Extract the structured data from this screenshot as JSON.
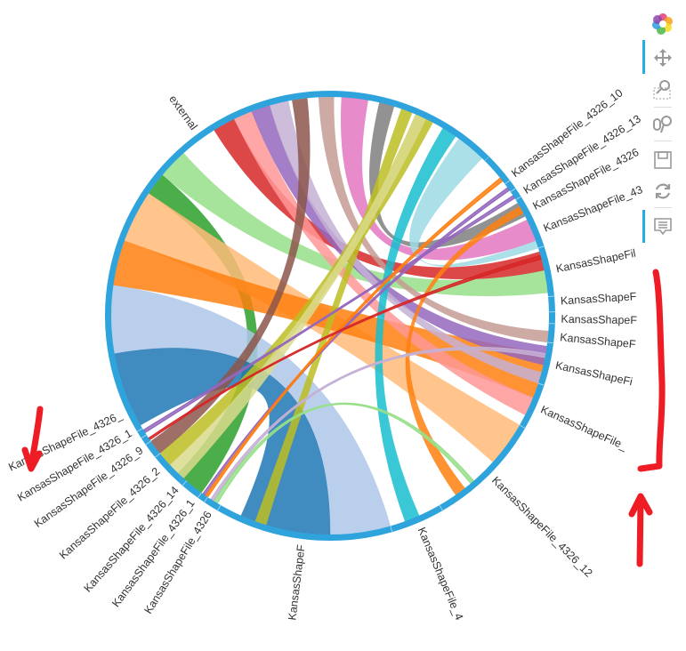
{
  "chart_data": {
    "type": "chord",
    "ring_color": "#2ea3dc",
    "nodes": [
      {
        "label": "external"
      },
      {
        "label": "KansasShapeFile_4326_"
      },
      {
        "label": "KansasShapeFile_4326_1"
      },
      {
        "label": "KansasShapeFile_4326_9"
      },
      {
        "label": "KansasShapeFile_4326_2"
      },
      {
        "label": "KansasShapeFile_4326_14"
      },
      {
        "label": "KansasShapeFile_4326_1"
      },
      {
        "label": "KansasShapeFile_4326"
      },
      {
        "label": "KansasShapeF"
      },
      {
        "label": "KansasShapeFile_4"
      },
      {
        "label": "KansasShapeFile_4326_12"
      },
      {
        "label": "KansasShapeFile_"
      },
      {
        "label": "KansasShapeFi"
      },
      {
        "label": "KansasShapeF"
      },
      {
        "label": "KansasShapeF"
      },
      {
        "label": "KansasShapeF"
      },
      {
        "label": "KansasShapeFil"
      },
      {
        "label": "KansasShapeFile_43"
      },
      {
        "label": "KansasShapeFile_4326"
      },
      {
        "label": "KansasShapeFile_4326_13"
      },
      {
        "label": "KansasShapeFile_4326_10"
      }
    ],
    "edges": [
      {
        "source": 0,
        "target": 16,
        "color": "#98df8a"
      },
      {
        "source": 0,
        "target": 5,
        "color": "#2ca02c"
      },
      {
        "source": 0,
        "target": 10,
        "color": "#ffbb78"
      },
      {
        "source": 0,
        "target": 12,
        "color": "#ff7f0e"
      },
      {
        "source": 0,
        "target": 8,
        "color": "#aec7e8"
      },
      {
        "source": 0,
        "target": 8,
        "color": "#1f77b4"
      },
      {
        "source": 0,
        "target": 16,
        "color": "#d62728"
      },
      {
        "source": 0,
        "target": 11,
        "color": "#ff9896"
      },
      {
        "source": 0,
        "target": 12,
        "color": "#9467bd"
      },
      {
        "source": 0,
        "target": 12,
        "color": "#c5b0d5"
      },
      {
        "source": 0,
        "target": 3,
        "color": "#8c564b"
      },
      {
        "source": 0,
        "target": 13,
        "color": "#c49c94"
      },
      {
        "source": 0,
        "target": 17,
        "color": "#e377c2"
      },
      {
        "source": 0,
        "target": 17,
        "color": "#7f7f7f"
      },
      {
        "source": 0,
        "target": 4,
        "color": "#bcbd22"
      },
      {
        "source": 0,
        "target": 9,
        "color": "#17becf"
      },
      {
        "source": 0,
        "target": 17,
        "color": "#9edae5"
      },
      {
        "source": 8,
        "target": 0,
        "color": "#bcbd22"
      },
      {
        "source": 10,
        "target": 17,
        "color": "#ff7f0e"
      },
      {
        "source": 4,
        "target": 0,
        "color": "#dbdb8d"
      },
      {
        "source": 1,
        "target": 18,
        "color": "#9467bd"
      },
      {
        "source": 6,
        "target": 19,
        "color": "#9467bd"
      },
      {
        "source": 7,
        "target": 12,
        "color": "#c5b0d5"
      },
      {
        "source": 6,
        "target": 20,
        "color": "#ff7f0e"
      },
      {
        "source": 7,
        "target": 10,
        "color": "#98df8a"
      },
      {
        "source": 2,
        "target": 16,
        "color": "#d62728"
      }
    ]
  },
  "toolbar": {
    "tools": [
      {
        "name": "bokeh-logo",
        "active": false
      },
      {
        "name": "pan",
        "active": true
      },
      {
        "name": "box-zoom",
        "active": false
      },
      {
        "name": "wheel-zoom",
        "active": false
      },
      {
        "name": "save",
        "active": false
      },
      {
        "name": "reset",
        "active": false
      },
      {
        "name": "hover",
        "active": true
      }
    ]
  },
  "annotations": {
    "color": "#ee1c25",
    "marks": [
      "red-bracket-arrow-right",
      "red-arrow-up",
      "red-arrow-down-left"
    ]
  }
}
